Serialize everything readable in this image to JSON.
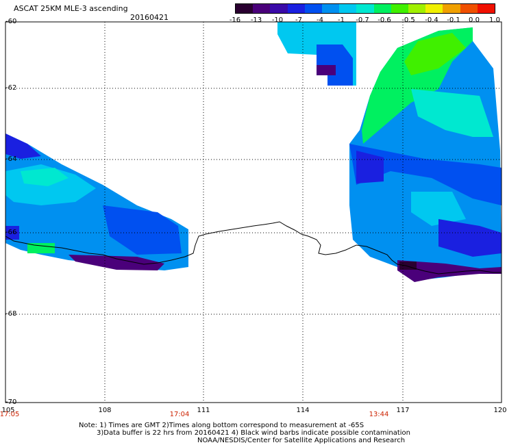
{
  "header": {
    "title": "ASCAT 25KM MLE-3 ascending",
    "date": "20160421"
  },
  "colorbar": {
    "labels": [
      "-16",
      "-13",
      "-10",
      "-7",
      "-4",
      "-1",
      "-0.7",
      "-0.6",
      "-0.5",
      "-0.4",
      "-0.1",
      "0.0",
      "1.0"
    ],
    "colors": [
      "#2a0030",
      "#4a007a",
      "#3a0aa8",
      "#1a20e0",
      "#0050f0",
      "#0090f0",
      "#00c8f0",
      "#00e8d0",
      "#00f060",
      "#40f000",
      "#a0f000",
      "#f0f000",
      "#f0a000",
      "#f05000",
      "#f01000"
    ]
  },
  "map": {
    "lat_labels": [
      "-60",
      "-62",
      "-64",
      "-66",
      "-68",
      "-70"
    ],
    "lon_labels": [
      "105",
      "108",
      "111",
      "114",
      "117",
      "120"
    ],
    "time_labels": [
      "17:05",
      "17:04",
      "13:44"
    ]
  },
  "footer": {
    "line1": "Note: 1) Times are GMT 2)Times along bottom correspond to measurement at -65S",
    "line2": "3)Data buffer is 22 hrs from 20160421 4) Black wind barbs indicate possible contamination",
    "line3": "NOAA/NESDIS/Center for Satellite Applications and Research"
  }
}
